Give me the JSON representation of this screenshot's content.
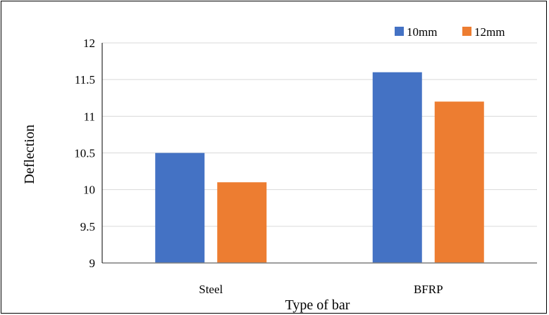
{
  "chart_data": {
    "type": "bar",
    "categories": [
      "Steel",
      "BFRP"
    ],
    "series": [
      {
        "name": "10mm",
        "values": [
          10.5,
          11.6
        ],
        "color": "#4472C4"
      },
      {
        "name": "12mm",
        "values": [
          10.1,
          11.2
        ],
        "color": "#ED7D31"
      }
    ],
    "title": "",
    "xlabel": "Type of bar",
    "ylabel": "Deflection",
    "ylim": [
      9,
      12
    ],
    "yticks": [
      9,
      9.5,
      10,
      10.5,
      11,
      11.5,
      12
    ],
    "ytick_labels": [
      "9",
      "9.5",
      "10",
      "10.5",
      "11",
      "11.5",
      "12"
    ],
    "grid": true,
    "legend_position": "top-right",
    "gridline_color": "#D9D9D9"
  }
}
